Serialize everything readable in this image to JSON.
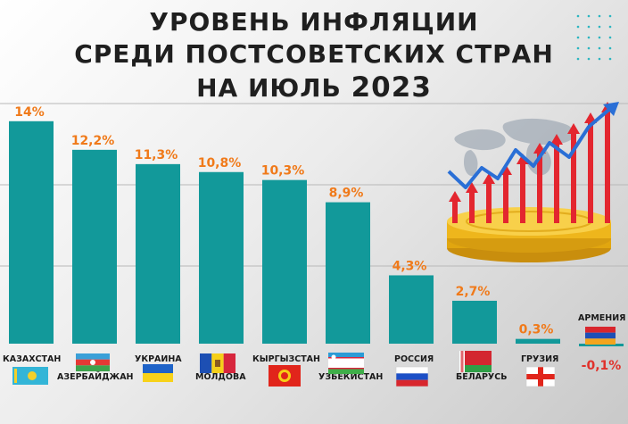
{
  "title": {
    "line1": "УРОВЕНЬ ИНФЛЯЦИИ",
    "line2": "СРЕДИ ПОСТСОВЕТСКИХ СТРАН",
    "line3": "НА ИЮЛЬ",
    "year": "2023"
  },
  "colors": {
    "bar": "#12999a",
    "value_label": "#f07a1a",
    "negative_label": "#e0312b",
    "title": "#1f1f1f",
    "grid": "#b8b8b8"
  },
  "chart_data": {
    "type": "bar",
    "title": "УРОВЕНЬ ИНФЛЯЦИИ СРЕДИ ПОСТСОВЕТСКИХ СТРАН НА ИЮЛЬ 2023",
    "xlabel": "",
    "ylabel": "",
    "unit": "%",
    "grid": true,
    "ylim": [
      -0.1,
      14
    ],
    "categories": [
      "КАЗАХСТАН",
      "АЗЕРБАЙДЖАН",
      "УКРАИНА",
      "МОЛДОВА",
      "КЫРГЫЗСТАН",
      "УЗБЕКИСТАН",
      "РОССИЯ",
      "БЕЛАРУСЬ",
      "ГРУЗИЯ",
      "АРМЕНИЯ"
    ],
    "values": [
      14,
      12.2,
      11.3,
      10.8,
      10.3,
      8.9,
      4.3,
      2.7,
      0.3,
      -0.1
    ],
    "value_labels": [
      "14%",
      "12,2%",
      "11,3%",
      "10,8%",
      "10,3%",
      "8,9%",
      "4,3%",
      "2,7%",
      "0,3%",
      "-0,1%"
    ],
    "flags": [
      "kazakhstan-flag",
      "azerbaijan-flag",
      "ukraine-flag",
      "moldova-flag",
      "kyrgyzstan-flag",
      "uzbekistan-flag",
      "russia-flag",
      "belarus-flag",
      "georgia-flag",
      "armenia-flag"
    ],
    "illustration": "inflation-growth-illustration"
  }
}
